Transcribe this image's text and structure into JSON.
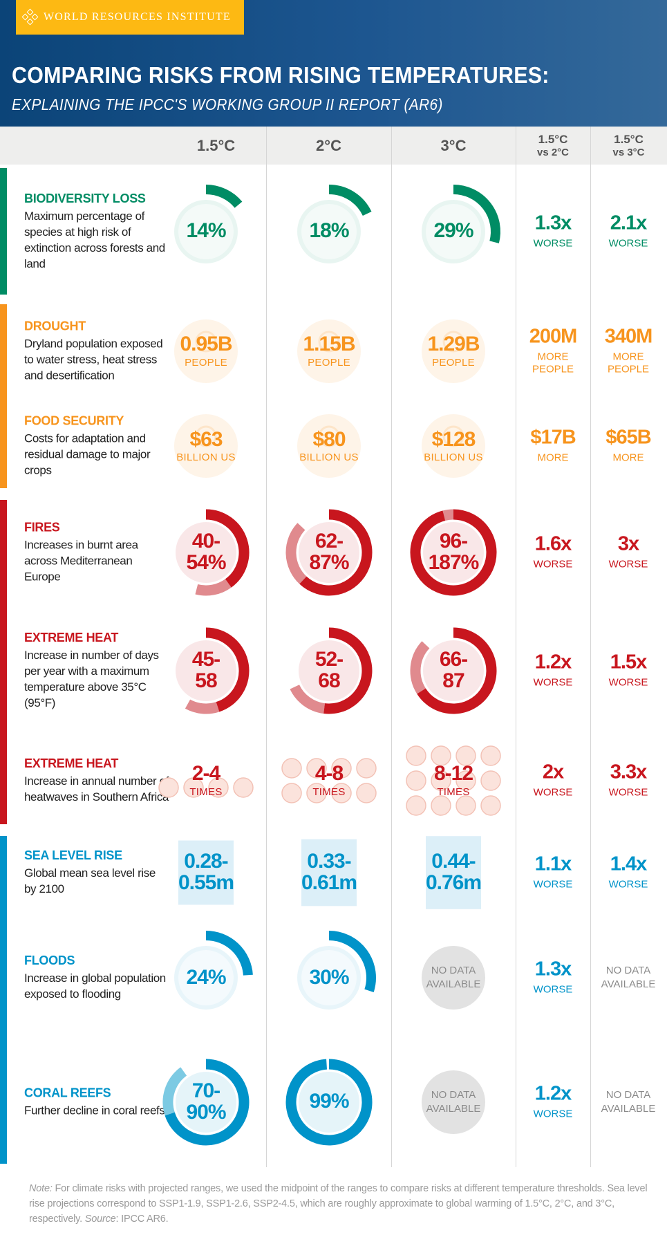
{
  "header": {
    "logo_text": "WORLD RESOURCES INSTITUTE",
    "title": "COMPARING RISKS FROM RISING TEMPERATURES:",
    "subtitle": "EXPLAINING THE IPCC'S WORKING GROUP II REPORT (AR6)",
    "background": "#0b4478",
    "logo_color": "#fdb913"
  },
  "columns": [
    {
      "label": "1.5°C"
    },
    {
      "label": "2°C"
    },
    {
      "label": "3°C"
    },
    {
      "label": "1.5°C",
      "sub": "vs 2°C"
    },
    {
      "label": "1.5°C",
      "sub": "vs 3°C"
    }
  ],
  "colors": {
    "green": "#008c64",
    "orange": "#f7941d",
    "red": "#c8161e",
    "red_light": "#e08a8e",
    "blue": "#0093c9",
    "blue_light": "#7ccae3",
    "gray": "#8a8a8a"
  },
  "rows": [
    {
      "title": "BIODIVERSITY LOSS",
      "desc": "Maximum percentage of species at high risk of extinction across forests and land",
      "color": "#008c64",
      "icon": "monkey-icon",
      "kind": "arc",
      "cells": [
        {
          "value": "14%",
          "pct": 14
        },
        {
          "value": "18%",
          "pct": 18
        },
        {
          "value": "29%",
          "pct": 29
        }
      ],
      "compare": [
        {
          "value": "1.3x",
          "unit": "WORSE"
        },
        {
          "value": "2.1x",
          "unit": "WORSE"
        }
      ]
    },
    {
      "title": "DROUGHT",
      "desc": "Dryland population exposed to water stress, heat stress and desertification",
      "color": "#f7941d",
      "icon": "sun-icon",
      "kind": "plain",
      "cells": [
        {
          "value": "0.95B",
          "unit": "PEOPLE"
        },
        {
          "value": "1.15B",
          "unit": "PEOPLE"
        },
        {
          "value": "1.29B",
          "unit": "PEOPLE"
        }
      ],
      "compare": [
        {
          "value": "200M",
          "unit": "MORE PEOPLE"
        },
        {
          "value": "340M",
          "unit": "MORE PEOPLE"
        }
      ]
    },
    {
      "title": "FOOD SECURITY",
      "desc": "Costs for adaptation and residual damage to major crops",
      "color": "#f7941d",
      "icon": "crop-icon",
      "kind": "plain",
      "cells": [
        {
          "value": "$63",
          "unit": "BILLION US"
        },
        {
          "value": "$80",
          "unit": "BILLION US"
        },
        {
          "value": "$128",
          "unit": "BILLION US"
        }
      ],
      "compare": [
        {
          "value": "$17B",
          "unit": "MORE"
        },
        {
          "value": "$65B",
          "unit": "MORE"
        }
      ]
    },
    {
      "title": "FIRES",
      "desc": "Increases in burnt area across Mediterranean Europe",
      "color": "#c8161e",
      "light": "#e08a8e",
      "icon": "flame-icon",
      "kind": "ring",
      "cells": [
        {
          "value": "40-\n54%",
          "lo": 40,
          "hi": 54
        },
        {
          "value": "62-\n87%",
          "lo": 62,
          "hi": 87
        },
        {
          "value": "96-\n187%",
          "lo": 96,
          "hi": 187
        }
      ],
      "compare": [
        {
          "value": "1.6x",
          "unit": "WORSE"
        },
        {
          "value": "3x",
          "unit": "WORSE"
        }
      ]
    },
    {
      "title": "EXTREME HEAT",
      "desc": "Increase in number of days per year with a maximum temperature above 35°C (95°F)",
      "color": "#c8161e",
      "light": "#e08a8e",
      "icon": "sun-icon",
      "kind": "ring",
      "cells": [
        {
          "value": "45-\n58",
          "lo": 45,
          "hi": 58
        },
        {
          "value": "52-\n68",
          "lo": 52,
          "hi": 68
        },
        {
          "value": "66-\n87",
          "lo": 66,
          "hi": 87
        }
      ],
      "compare": [
        {
          "value": "1.2x",
          "unit": "WORSE"
        },
        {
          "value": "1.5x",
          "unit": "WORSE"
        }
      ]
    },
    {
      "title": "EXTREME HEAT",
      "desc": "Increase in annual number of heatwaves in Southern Africa",
      "color": "#c8161e",
      "icon": "sun-icon",
      "kind": "suns",
      "cells": [
        {
          "value": "2-4",
          "unit": "TIMES",
          "hi": 4
        },
        {
          "value": "4-8",
          "unit": "TIMES",
          "hi": 8
        },
        {
          "value": "8-12",
          "unit": "TIMES",
          "hi": 12
        }
      ],
      "compare": [
        {
          "value": "2x",
          "unit": "WORSE"
        },
        {
          "value": "3.3x",
          "unit": "WORSE"
        }
      ]
    },
    {
      "title": "SEA LEVEL RISE",
      "desc": "Global mean sea level rise by 2100",
      "color": "#0093c9",
      "icon": "fish-icon",
      "kind": "water",
      "cells": [
        {
          "value": "0.28-\n0.55m",
          "hi": 0.55
        },
        {
          "value": "0.33-\n0.61m",
          "hi": 0.61
        },
        {
          "value": "0.44-\n0.76m",
          "hi": 0.76
        }
      ],
      "compare": [
        {
          "value": "1.1x",
          "unit": "WORSE"
        },
        {
          "value": "1.4x",
          "unit": "WORSE"
        }
      ]
    },
    {
      "title": "FLOODS",
      "desc": "Increase in global population exposed to flooding",
      "color": "#0093c9",
      "icon": "house-flood-icon",
      "kind": "arc",
      "cells": [
        {
          "value": "24%",
          "pct": 24
        },
        {
          "value": "30%",
          "pct": 30
        },
        {
          "nodata": "NO DATA AVAILABLE"
        }
      ],
      "compare": [
        {
          "value": "1.3x",
          "unit": "WORSE"
        },
        {
          "nodata": "NO DATA AVAILABLE"
        }
      ]
    },
    {
      "title": "CORAL REEFS",
      "desc": "Further decline in coral reefs",
      "color": "#0093c9",
      "light": "#7ccae3",
      "icon": "coral-icon",
      "kind": "ring",
      "cells": [
        {
          "value": "70-\n90%",
          "lo": 70,
          "hi": 90
        },
        {
          "value": "99%",
          "lo": 99,
          "hi": 99
        },
        {
          "nodata": "NO DATA AVAILABLE"
        }
      ],
      "compare": [
        {
          "value": "1.2x",
          "unit": "WORSE"
        },
        {
          "nodata": "NO DATA AVAILABLE"
        }
      ]
    }
  ],
  "note": {
    "note_label": "Note:",
    "note_text": " For climate risks with projected ranges, we used the midpoint of the ranges to compare risks at different temperature thresholds. Sea level rise projections correspond to SSP1-1.9, SSP1-2.6, SSP2-4.5, which are roughly approximate to global warming of 1.5°C, 2°C, and 3°C, respectively. ",
    "source_label": "Source",
    "source_text": ": IPCC AR6."
  }
}
